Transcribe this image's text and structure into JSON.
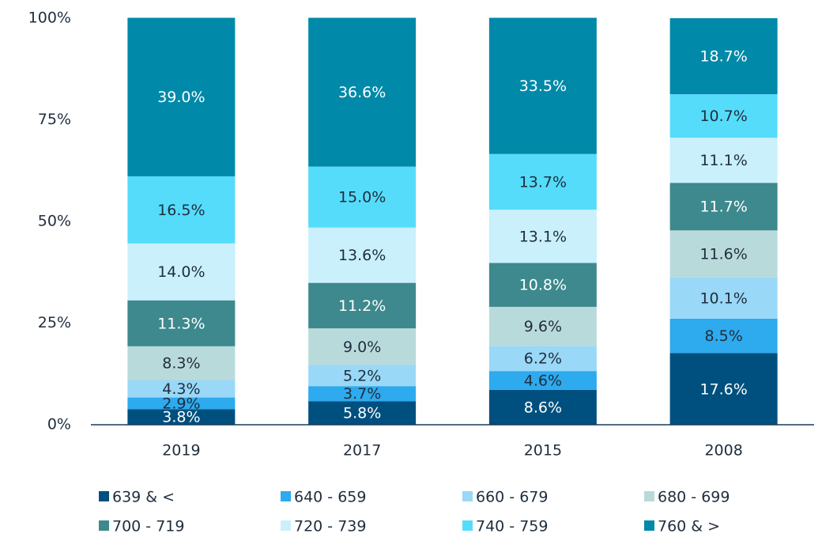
{
  "chart_data": {
    "type": "stacked-bar",
    "categories": [
      "2019",
      "2017",
      "2015",
      "2008"
    ],
    "series": [
      {
        "name": "639 & <",
        "color": "#00507f",
        "values": [
          3.8,
          5.8,
          8.6,
          17.6
        ],
        "value_labels": [
          "3.8%",
          "5.8%",
          "8.6%",
          "17.6%"
        ]
      },
      {
        "name": "640 - 659",
        "color": "#2eaaee",
        "values": [
          2.9,
          3.7,
          4.6,
          8.5
        ],
        "value_labels": [
          "2.9%",
          "3.7%",
          "4.6%",
          "8.5%"
        ]
      },
      {
        "name": "660 - 679",
        "color": "#99d8f7",
        "values": [
          4.3,
          5.2,
          6.2,
          10.1
        ],
        "value_labels": [
          "4.3%",
          "5.2%",
          "6.2%",
          "10.1%"
        ]
      },
      {
        "name": "680 - 699",
        "color": "#b9dadb",
        "values": [
          8.3,
          9.0,
          9.6,
          11.6
        ],
        "value_labels": [
          "8.3%",
          "9.0%",
          "9.6%",
          "11.6%"
        ]
      },
      {
        "name": "700 - 719",
        "color": "#3d898d",
        "values": [
          11.3,
          11.2,
          10.8,
          11.7
        ],
        "value_labels": [
          "11.3%",
          "11.2%",
          "10.8%",
          "11.7%"
        ]
      },
      {
        "name": "720 - 739",
        "color": "#c9f0fb",
        "values": [
          14.0,
          13.6,
          13.1,
          11.1
        ],
        "value_labels": [
          "14.0%",
          "13.6%",
          "13.1%",
          "11.1%"
        ]
      },
      {
        "name": "740 - 759",
        "color": "#55dcfb",
        "values": [
          16.5,
          15.0,
          13.7,
          10.7
        ],
        "value_labels": [
          "16.5%",
          "15.0%",
          "13.7%",
          "10.7%"
        ]
      },
      {
        "name": "760 & >",
        "color": "#0089a8",
        "values": [
          39.0,
          36.6,
          33.5,
          18.7
        ],
        "value_labels": [
          "39.0%",
          "36.6%",
          "33.5%",
          "18.7%"
        ]
      }
    ],
    "ylim": [
      0,
      100
    ],
    "yticks": [
      {
        "value": 0,
        "label": "0%"
      },
      {
        "value": 25,
        "label": "25%"
      },
      {
        "value": 50,
        "label": "50%"
      },
      {
        "value": 75,
        "label": "75%"
      },
      {
        "value": 100,
        "label": "100%"
      }
    ],
    "grid": false
  }
}
